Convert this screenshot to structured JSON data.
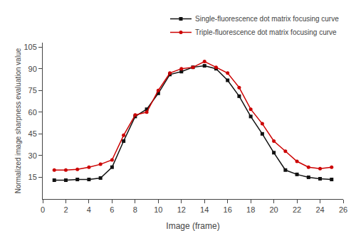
{
  "chart_data": {
    "type": "line",
    "xlabel": "Image (frame)",
    "ylabel": "Normalized image sharpness evaluation value",
    "x": [
      1,
      2,
      3,
      4,
      5,
      6,
      7,
      8,
      9,
      10,
      11,
      12,
      13,
      14,
      15,
      16,
      17,
      18,
      19,
      20,
      21,
      22,
      23,
      24,
      25
    ],
    "series": [
      {
        "name": "Single-fluorescence dot matrix focusing curve",
        "color": "#111111",
        "marker": "square",
        "line_style": "solid",
        "values": [
          13,
          13,
          13.5,
          13.5,
          14.5,
          22,
          40,
          57,
          62,
          73,
          86,
          88,
          91,
          92,
          90,
          82,
          71,
          57,
          45,
          32,
          20,
          17,
          15,
          14,
          13.5
        ]
      },
      {
        "name": "Triple-fluorescence dot matrix focusing curve",
        "color": "#cc0000",
        "marker": "circle",
        "line_style": "solid",
        "values": [
          20,
          20,
          20.5,
          22,
          24,
          27,
          44,
          58,
          60,
          75,
          87,
          90,
          91,
          95,
          91,
          87,
          77,
          62,
          52,
          40,
          33,
          26,
          22,
          21,
          22
        ]
      }
    ],
    "xlim": [
      0,
      26
    ],
    "ylim": [
      0,
      108
    ],
    "xticks": [
      0,
      2,
      4,
      6,
      8,
      10,
      12,
      14,
      16,
      18,
      20,
      22,
      24,
      26
    ],
    "yticks": [
      15,
      30,
      45,
      60,
      75,
      90,
      105
    ],
    "grid": false,
    "legend": "upper right"
  }
}
